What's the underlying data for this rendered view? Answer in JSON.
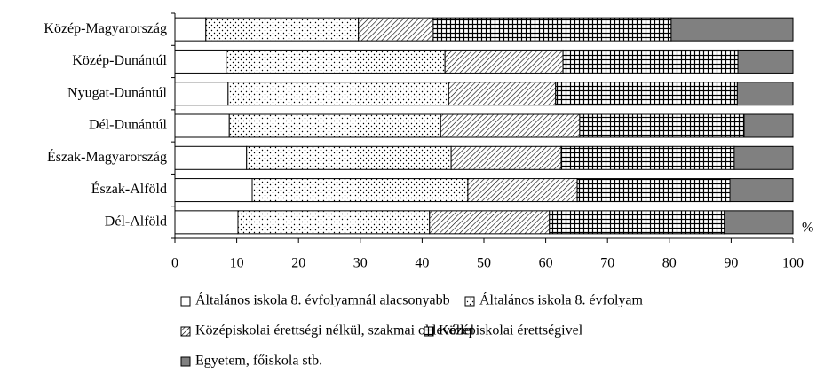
{
  "chart_data": {
    "type": "stacked-barh",
    "categories": [
      "Közép-Magyarország",
      "Közép-Dunántúl",
      "Nyugat-Dunántúl",
      "Dél-Dunántúl",
      "Észak-Magyarország",
      "Észak-Alföld",
      "Dél-Alföld"
    ],
    "series": [
      {
        "name": "Általános iskola 8. évfolyamnál alacsonyabb",
        "color": "#ffffff",
        "pattern": "none",
        "values": [
          5.0,
          8.3,
          8.6,
          8.8,
          11.6,
          12.5,
          10.2
        ]
      },
      {
        "name": "Általános iskola 8. évfolyam",
        "color": "#ffffff",
        "pattern": "dots",
        "values": [
          24.7,
          35.4,
          35.7,
          34.2,
          33.1,
          34.9,
          31.0
        ]
      },
      {
        "name": "Középiskolai érettségi nélkül, szakmai oklevéllel",
        "color": "#ffffff",
        "pattern": "diagonal",
        "values": [
          12.1,
          19.1,
          17.3,
          22.5,
          17.8,
          17.7,
          19.4
        ]
      },
      {
        "name": "Középiskolai érettségivel",
        "color": "#ffffff",
        "pattern": "grid",
        "values": [
          38.5,
          28.3,
          29.4,
          26.6,
          28.0,
          24.7,
          28.3
        ]
      },
      {
        "name": "Egyetem, főiskola stb.",
        "color": "#808080",
        "pattern": "none",
        "values": [
          19.7,
          8.9,
          9.0,
          7.9,
          9.5,
          10.2,
          11.1
        ]
      }
    ],
    "xlabel": "%",
    "xlim": [
      0,
      100
    ],
    "xticks": [
      0,
      10,
      20,
      30,
      40,
      50,
      60,
      70,
      80,
      90,
      100
    ]
  }
}
